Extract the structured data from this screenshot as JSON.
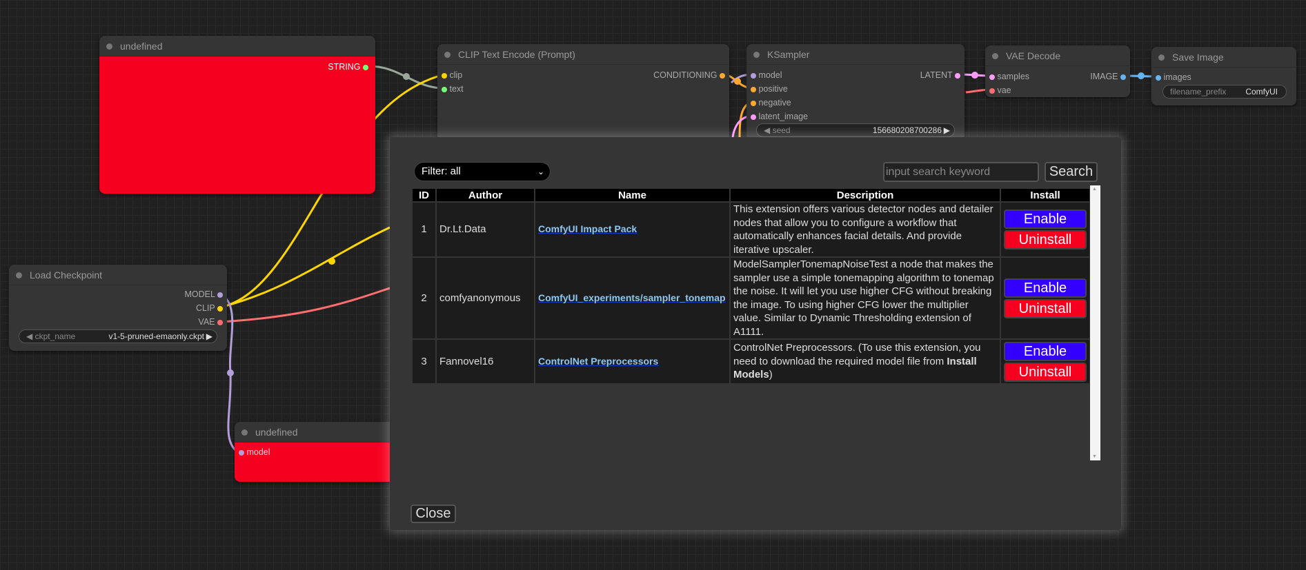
{
  "nodes": {
    "undef_top": {
      "title": "undefined",
      "output": "STRING"
    },
    "clip": {
      "title": "CLIP Text Encode (Prompt)",
      "inputs": [
        "clip",
        "text"
      ],
      "output": "CONDITIONING"
    },
    "ksampler": {
      "title": "KSampler",
      "inputs": [
        "model",
        "positive",
        "negative",
        "latent_image"
      ],
      "output": "LATENT",
      "seed_label": "seed",
      "seed_value": "156680208700286"
    },
    "vae": {
      "title": "VAE Decode",
      "inputs": [
        "samples",
        "vae"
      ],
      "output": "IMAGE"
    },
    "save": {
      "title": "Save Image",
      "input": "images",
      "prefix_label": "filename_prefix",
      "prefix_value": "ComfyUI"
    },
    "ckpt": {
      "title": "Load Checkpoint",
      "outputs": [
        "MODEL",
        "CLIP",
        "VAE"
      ],
      "ckpt_label": "ckpt_name",
      "ckpt_value": "v1-5-pruned-emaonly.ckpt"
    },
    "undef_bottom": {
      "title": "undefined",
      "input": "model"
    }
  },
  "dialog": {
    "filter": "Filter: all",
    "search_placeholder": "input search keyword",
    "search_button": "Search",
    "headers": [
      "ID",
      "Author",
      "Name",
      "Description",
      "Install"
    ],
    "rows": [
      {
        "id": "1",
        "author": "Dr.Lt.Data",
        "name": "ComfyUI Impact Pack",
        "desc": "This extension offers various detector nodes and detailer nodes that allow you to configure a workflow that automatically enhances facial details. And provide iterative upscaler.",
        "desc_bold": "",
        "desc_end": "",
        "enable": "Enable",
        "uninstall": "Uninstall"
      },
      {
        "id": "2",
        "author": "comfyanonymous",
        "name": "ComfyUI_experiments/sampler_tonemap",
        "desc": "ModelSamplerTonemapNoiseTest a node that makes the sampler use a simple tonemapping algorithm to tonemap the noise. It will let you use higher CFG without breaking the image. To using higher CFG lower the multiplier value. Similar to Dynamic Thresholding extension of A1111.",
        "desc_bold": "",
        "desc_end": "",
        "enable": "Enable",
        "uninstall": "Uninstall"
      },
      {
        "id": "3",
        "author": "Fannovel16",
        "name": "ControlNet Preprocessors",
        "desc": "ControlNet Preprocessors. (To use this extension, you need to download the required model file from ",
        "desc_bold": "Install Models",
        "desc_end": ")",
        "enable": "Enable",
        "uninstall": "Uninstall"
      }
    ],
    "close": "Close"
  },
  "colors": {
    "enable": "#3300ff",
    "uninstall": "#f60020",
    "node_error": "#f60020"
  }
}
